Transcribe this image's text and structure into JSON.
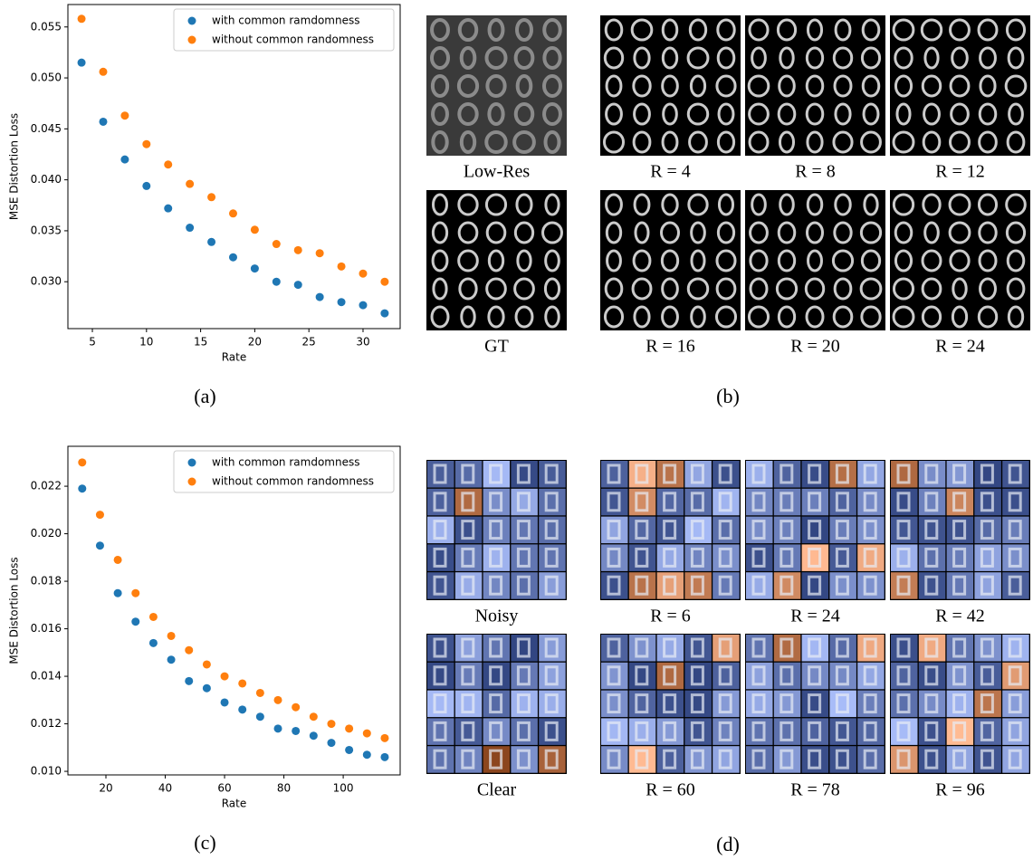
{
  "chart_data": [
    {
      "type": "scatter",
      "caption": "(a)",
      "x_label": "Rate",
      "y_label": "MSE Distortion Loss",
      "x": [
        4,
        6,
        8,
        10,
        12,
        14,
        16,
        18,
        20,
        22,
        24,
        26,
        28,
        30,
        32
      ],
      "series": [
        {
          "name": "with common ramdomness",
          "color": "#1f77b4",
          "values": [
            0.0515,
            0.0457,
            0.042,
            0.0394,
            0.0372,
            0.0353,
            0.0339,
            0.0324,
            0.0313,
            0.03,
            0.0297,
            0.0285,
            0.028,
            0.0277,
            0.0269
          ]
        },
        {
          "name": "without common randomness",
          "color": "#ff7f0e",
          "values": [
            0.0558,
            0.0506,
            0.0463,
            0.0435,
            0.0415,
            0.0396,
            0.0383,
            0.0367,
            0.0351,
            0.0337,
            0.0331,
            0.0328,
            0.0315,
            0.0308,
            0.03
          ]
        }
      ],
      "xlim": [
        2.74,
        33.43
      ],
      "xticks": [
        5,
        10,
        15,
        20,
        25,
        30
      ],
      "ylim": [
        0.0254,
        0.0572
      ],
      "yticks": [
        {
          "value": 0.03,
          "label": "0.030"
        },
        0.035,
        {
          "value": 0.04,
          "label": "0.040"
        },
        0.045,
        {
          "value": 0.05,
          "label": "0.050"
        },
        0.055
      ],
      "legend": "upper right"
    },
    {
      "type": "scatter",
      "caption": "(c)",
      "x_label": "Rate",
      "y_label": "MSE Distortion Loss",
      "x": [
        12,
        18,
        24,
        30,
        36,
        42,
        48,
        54,
        60,
        66,
        72,
        78,
        84,
        90,
        96,
        102,
        108,
        114
      ],
      "series": [
        {
          "name": "with common ramdomness",
          "color": "#1f77b4",
          "values": [
            0.0219,
            0.0195,
            0.0175,
            0.0163,
            0.0154,
            0.0147,
            0.0138,
            0.0135,
            0.0129,
            0.0126,
            0.0123,
            0.0118,
            0.0117,
            0.0115,
            0.0112,
            0.0109,
            0.0107,
            0.0106
          ]
        },
        {
          "name": "without common randomness",
          "color": "#ff7f0e",
          "values": [
            0.023,
            0.0208,
            0.0189,
            0.0175,
            0.0165,
            0.0157,
            0.0151,
            0.0145,
            0.014,
            0.0137,
            0.0133,
            0.013,
            0.0127,
            0.0123,
            0.012,
            0.0118,
            0.0116,
            0.0114
          ]
        }
      ],
      "xlim": [
        7.18,
        119.2
      ],
      "xticks": [
        20,
        40,
        60,
        80,
        100
      ],
      "ylim": [
        0.00985,
        0.02368
      ],
      "yticks": [
        {
          "value": 0.01,
          "label": "0.010"
        },
        0.012,
        0.014,
        0.016,
        0.018,
        {
          "value": 0.02,
          "label": "0.020"
        },
        0.022
      ],
      "legend": "upper right"
    }
  ],
  "figure_b": {
    "caption": "(b)",
    "panels": [
      {
        "caption": "Low-Res"
      },
      {
        "caption": "R = 4"
      },
      {
        "caption": "R = 8"
      },
      {
        "caption": "R = 12"
      },
      {
        "caption": "GT"
      },
      {
        "caption": "R = 16"
      },
      {
        "caption": "R = 20"
      },
      {
        "caption": "R = 24"
      }
    ]
  },
  "figure_d": {
    "caption": "(d)",
    "panels": [
      {
        "caption": "Noisy"
      },
      {
        "caption": "R = 6"
      },
      {
        "caption": "R = 24"
      },
      {
        "caption": "R = 42"
      },
      {
        "caption": "Clear"
      },
      {
        "caption": "R = 60"
      },
      {
        "caption": "R = 78"
      },
      {
        "caption": "R = 96"
      }
    ]
  }
}
